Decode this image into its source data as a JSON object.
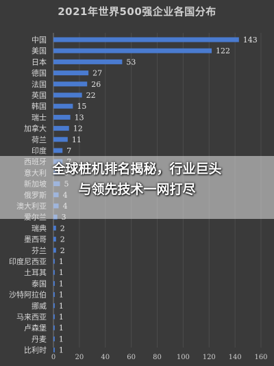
{
  "headline": {
    "line1": "全球桩机排名揭秘，行业巨头",
    "line2": "与领先技术一网打尽"
  },
  "chart_data": {
    "type": "bar",
    "orientation": "horizontal",
    "title": "2021年世界500强企业各国分布",
    "categories": [
      "中国",
      "美国",
      "日本",
      "德国",
      "法国",
      "英国",
      "韩国",
      "瑞士",
      "加拿大",
      "荷兰",
      "印度",
      "西班牙",
      "意大利",
      "新加坡",
      "俄罗斯",
      "澳大利亚",
      "爱尔兰",
      "瑞典",
      "墨西哥",
      "芬兰",
      "印度尼西亚",
      "土耳其",
      "泰国",
      "沙特阿拉伯",
      "挪威",
      "马来西亚",
      "卢森堡",
      "丹麦",
      "比利时"
    ],
    "values": [
      143,
      122,
      53,
      27,
      26,
      22,
      15,
      13,
      12,
      11,
      7,
      7,
      5,
      5,
      4,
      4,
      3,
      2,
      2,
      2,
      1,
      1,
      1,
      1,
      1,
      1,
      1,
      1,
      1
    ],
    "xlim": [
      0,
      160
    ],
    "xticks": [
      0,
      20,
      40,
      60,
      80,
      100,
      120,
      140,
      160
    ],
    "bar_color": "#4a7bd0",
    "grid": true
  }
}
